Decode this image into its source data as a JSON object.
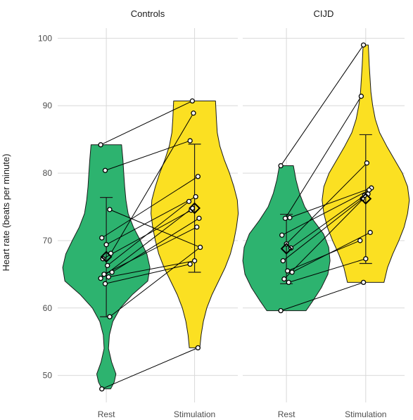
{
  "chart_data": {
    "type": "violin",
    "ylabel": "Heart rate (beats per minute)",
    "ylim": [
      46,
      101.5
    ],
    "yticks": [
      50,
      60,
      70,
      80,
      90,
      100
    ],
    "categories": [
      "Rest",
      "Stimulation"
    ],
    "colors": {
      "Rest": "#2db36f",
      "Stimulation": "#fbe022"
    },
    "panels": [
      {
        "title": "Controls",
        "pairs": [
          {
            "rest": 84.2,
            "stim": 90.7
          },
          {
            "rest": 80.4,
            "stim": 84.8
          },
          {
            "rest": 74.6,
            "stim": 69.0
          },
          {
            "rest": 70.4,
            "stim": 79.5
          },
          {
            "rest": 69.4,
            "stim": 76.5
          },
          {
            "rest": 68.1,
            "stim": 88.9
          },
          {
            "rest": 67.3,
            "stim": 74.5
          },
          {
            "rest": 66.3,
            "stim": 75.8
          },
          {
            "rest": 65.3,
            "stim": 73.3
          },
          {
            "rest": 65.0,
            "stim": 72.0
          },
          {
            "rest": 64.6,
            "stim": 67.0
          },
          {
            "rest": 64.4,
            "stim": 74.8
          },
          {
            "rest": 63.6,
            "stim": 66.5
          },
          {
            "rest": 58.7,
            "stim": 69.0
          },
          {
            "rest": 48.0,
            "stim": 54.1
          }
        ],
        "summary": {
          "Rest": {
            "mean": 67.6,
            "lower": 58.7,
            "upper": 76.4
          },
          "Stimulation": {
            "mean": 74.8,
            "lower": 65.3,
            "upper": 84.3
          }
        },
        "violins": {
          "Rest": {
            "min": 48.0,
            "max": 84.2,
            "y": [
              48.0,
              49.0,
              50.2,
              52.0,
              54.0,
              56.0,
              58.0,
              60.0,
              62.0,
              64.0,
              66.0,
              68.0,
              70.0,
              72.0,
              74.0,
              76.0,
              78.0,
              80.0,
              82.0,
              84.2
            ],
            "w": [
              0.1,
              0.18,
              0.22,
              0.12,
              0.05,
              0.07,
              0.15,
              0.32,
              0.6,
              0.95,
              1.0,
              0.93,
              0.78,
              0.62,
              0.5,
              0.45,
              0.42,
              0.4,
              0.38,
              0.35
            ]
          },
          "Stimulation": {
            "min": 54.1,
            "max": 90.7,
            "y": [
              54.1,
              56.0,
              58.0,
              60.0,
              62.0,
              64.0,
              66.0,
              68.0,
              70.0,
              72.0,
              74.0,
              76.0,
              78.0,
              80.0,
              82.0,
              84.0,
              86.0,
              88.0,
              90.7
            ],
            "w": [
              0.12,
              0.15,
              0.2,
              0.28,
              0.4,
              0.55,
              0.7,
              0.82,
              0.9,
              0.96,
              1.0,
              0.98,
              0.9,
              0.8,
              0.68,
              0.58,
              0.52,
              0.5,
              0.48
            ]
          }
        }
      },
      {
        "title": "CIJD",
        "pairs": [
          {
            "rest": 81.1,
            "stim": 99.0
          },
          {
            "rest": 73.3,
            "stim": 91.4
          },
          {
            "rest": 73.4,
            "stim": 77.8
          },
          {
            "rest": 70.8,
            "stim": 77.5
          },
          {
            "rest": 69.5,
            "stim": 81.5
          },
          {
            "rest": 68.9,
            "stim": 76.7
          },
          {
            "rest": 67.0,
            "stim": 76.2
          },
          {
            "rest": 65.5,
            "stim": 70.0
          },
          {
            "rest": 65.3,
            "stim": 71.2
          },
          {
            "rest": 64.3,
            "stim": 76.9
          },
          {
            "rest": 63.8,
            "stim": 67.3
          },
          {
            "rest": 59.6,
            "stim": 63.8
          }
        ],
        "summary": {
          "Rest": {
            "mean": 68.8,
            "lower": 63.6,
            "upper": 73.9
          },
          "Stimulation": {
            "mean": 76.2,
            "lower": 66.6,
            "upper": 85.7
          }
        },
        "violins": {
          "Rest": {
            "min": 59.6,
            "max": 81.1,
            "y": [
              59.6,
              61.0,
              63.0,
              65.0,
              67.0,
              69.0,
              71.0,
              73.0,
              75.0,
              77.0,
              79.0,
              81.1
            ],
            "w": [
              0.45,
              0.6,
              0.8,
              0.95,
              1.0,
              0.97,
              0.85,
              0.62,
              0.42,
              0.3,
              0.22,
              0.16
            ]
          },
          "Stimulation": {
            "min": 63.8,
            "max": 99.0,
            "y": [
              63.8,
              66.0,
              68.0,
              70.0,
              72.0,
              74.0,
              76.0,
              78.0,
              80.0,
              82.0,
              84.0,
              86.0,
              88.0,
              90.0,
              92.0,
              94.0,
              96.0,
              99.0
            ],
            "w": [
              0.42,
              0.5,
              0.62,
              0.76,
              0.88,
              0.96,
              1.0,
              0.96,
              0.84,
              0.66,
              0.48,
              0.32,
              0.22,
              0.16,
              0.12,
              0.1,
              0.08,
              0.06
            ]
          }
        }
      }
    ]
  }
}
